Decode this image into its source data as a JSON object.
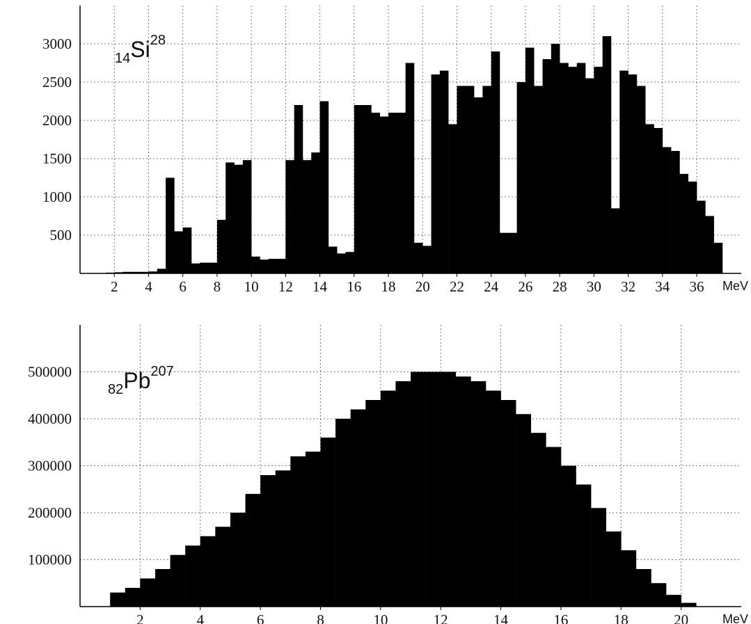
{
  "chart_data": [
    {
      "type": "histogram",
      "xlabel": "MeV",
      "annotation": {
        "sub": "14",
        "text": "Si",
        "sup": "28"
      },
      "color": "#000000",
      "grid": true,
      "xlim": [
        0,
        38.6
      ],
      "ylim": [
        0,
        3500
      ],
      "xticks": [
        2,
        4,
        6,
        8,
        10,
        12,
        14,
        16,
        18,
        20,
        22,
        24,
        26,
        28,
        30,
        32,
        34,
        36
      ],
      "yticks": [
        500,
        1000,
        1500,
        2000,
        2500,
        3000
      ],
      "bins": [
        1.5,
        2,
        2.5,
        3,
        3.5,
        4,
        4.5,
        5,
        5.5,
        6,
        6.5,
        7,
        7.5,
        8,
        8.5,
        9,
        9.5,
        10,
        10.5,
        11,
        11.5,
        12,
        12.5,
        13,
        13.5,
        14,
        14.5,
        15,
        15.5,
        16,
        16.5,
        17,
        17.5,
        18,
        18.5,
        19,
        19.5,
        20,
        20.5,
        21,
        21.5,
        22,
        22.5,
        23,
        23.5,
        24,
        24.5,
        25,
        25.5,
        26,
        26.5,
        27,
        27.5,
        28,
        28.5,
        29,
        29.5,
        30,
        30.5,
        31,
        31.5,
        32,
        32.5,
        33,
        33.5,
        34,
        34.5,
        35,
        35.5,
        36,
        36.5,
        37,
        37.5
      ],
      "values": [
        10,
        15,
        20,
        20,
        20,
        25,
        60,
        1250,
        550,
        600,
        130,
        140,
        140,
        700,
        1450,
        1420,
        1480,
        220,
        180,
        190,
        190,
        1480,
        2200,
        1480,
        1580,
        2250,
        350,
        260,
        280,
        2200,
        2200,
        2100,
        2050,
        2100,
        2100,
        2750,
        400,
        360,
        2600,
        2650,
        1950,
        2450,
        2450,
        2300,
        2450,
        2900,
        530,
        530,
        2500,
        2950,
        2450,
        2800,
        3000,
        2750,
        2700,
        2750,
        2550,
        2700,
        3100,
        850,
        2650,
        2600,
        2450,
        1950,
        1900,
        1650,
        1600,
        1300,
        1200,
        950,
        750,
        400
      ]
    },
    {
      "type": "histogram",
      "xlabel": "MeV",
      "annotation": {
        "sub": "82",
        "text": "Pb",
        "sup": "207"
      },
      "color": "#000000",
      "grid": true,
      "xlim": [
        0,
        22
      ],
      "ylim": [
        0,
        600000
      ],
      "xticks": [
        2,
        4,
        6,
        8,
        10,
        12,
        14,
        16,
        18,
        20
      ],
      "yticks": [
        100000,
        200000,
        300000,
        400000,
        500000
      ],
      "bins": [
        1,
        1.5,
        2,
        2.5,
        3,
        3.5,
        4,
        4.5,
        5,
        5.5,
        6,
        6.5,
        7,
        7.5,
        8,
        8.5,
        9,
        9.5,
        10,
        10.5,
        11,
        11.5,
        12,
        12.5,
        13,
        13.5,
        14,
        14.5,
        15,
        15.5,
        16,
        16.5,
        17,
        17.5,
        18,
        18.5,
        19,
        19.5,
        20,
        20.5
      ],
      "values": [
        30000,
        40000,
        60000,
        80000,
        110000,
        130000,
        150000,
        170000,
        200000,
        240000,
        280000,
        290000,
        320000,
        330000,
        360000,
        400000,
        420000,
        440000,
        460000,
        480000,
        500000,
        500000,
        500000,
        490000,
        480000,
        460000,
        440000,
        410000,
        370000,
        340000,
        300000,
        260000,
        210000,
        160000,
        120000,
        80000,
        50000,
        25000,
        8000
      ]
    }
  ]
}
